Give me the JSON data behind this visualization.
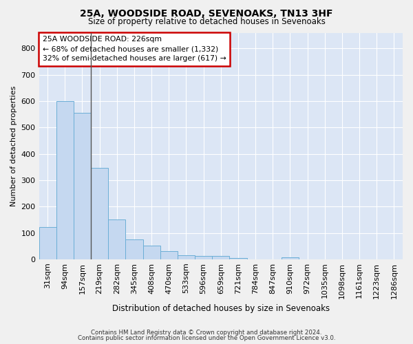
{
  "title1": "25A, WOODSIDE ROAD, SEVENOAKS, TN13 3HF",
  "title2": "Size of property relative to detached houses in Sevenoaks",
  "xlabel": "Distribution of detached houses by size in Sevenoaks",
  "ylabel": "Number of detached properties",
  "footer1": "Contains HM Land Registry data © Crown copyright and database right 2024.",
  "footer2": "Contains public sector information licensed under the Open Government Licence v3.0.",
  "annotation_line1": "25A WOODSIDE ROAD: 226sqm",
  "annotation_line2": "← 68% of detached houses are smaller (1,332)",
  "annotation_line3": "32% of semi-detached houses are larger (617) →",
  "bar_color": "#c5d8f0",
  "bar_edge_color": "#6baed6",
  "vline_color": "#555555",
  "annotation_box_facecolor": "#ffffff",
  "annotation_box_edge": "#cc0000",
  "plot_bg_color": "#dce6f5",
  "fig_bg_color": "#f0f0f0",
  "grid_color": "#ffffff",
  "categories": [
    "31sqm",
    "94sqm",
    "157sqm",
    "219sqm",
    "282sqm",
    "345sqm",
    "408sqm",
    "470sqm",
    "533sqm",
    "596sqm",
    "659sqm",
    "721sqm",
    "784sqm",
    "847sqm",
    "910sqm",
    "972sqm",
    "1035sqm",
    "1098sqm",
    "1161sqm",
    "1223sqm",
    "1286sqm"
  ],
  "values": [
    122,
    601,
    557,
    347,
    150,
    76,
    52,
    30,
    14,
    12,
    12,
    6,
    0,
    0,
    7,
    0,
    0,
    0,
    0,
    0,
    0
  ],
  "vline_x": 2.5,
  "ylim": [
    0,
    860
  ],
  "yticks": [
    0,
    100,
    200,
    300,
    400,
    500,
    600,
    700,
    800
  ]
}
